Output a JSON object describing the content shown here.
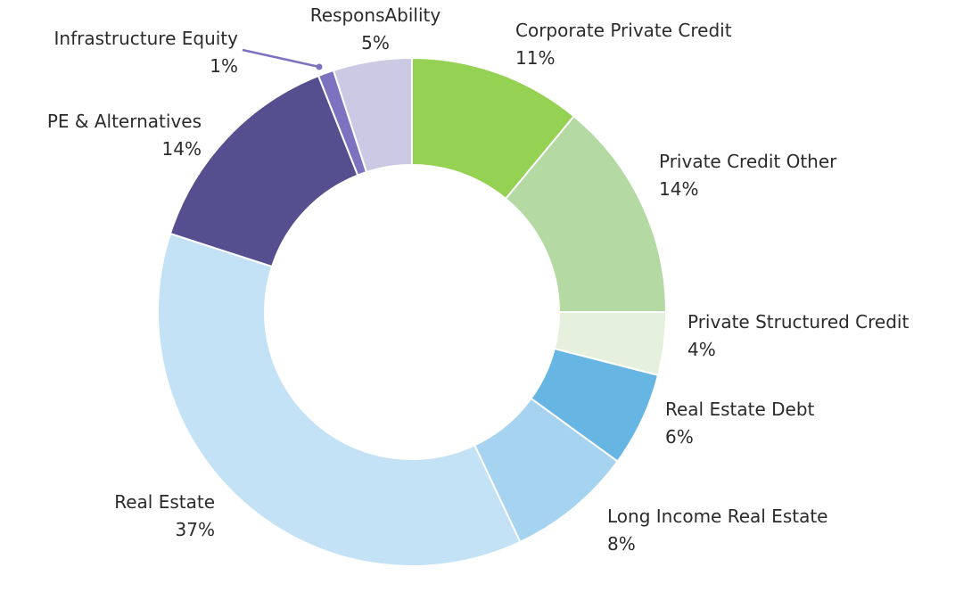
{
  "chart_data": {
    "type": "pie",
    "variant": "donut",
    "legend": "none",
    "slices": [
      {
        "label": "Corporate Private Credit",
        "value": 11,
        "value_label": "11%",
        "color": "#95d152"
      },
      {
        "label": "Private Credit Other",
        "value": 14,
        "value_label": "14%",
        "color": "#b4d9a2"
      },
      {
        "label": "Private Structured Credit",
        "value": 4,
        "value_label": "4%",
        "color": "#e5f0dd"
      },
      {
        "label": "Real Estate Debt",
        "value": 6,
        "value_label": "6%",
        "color": "#67b5e3"
      },
      {
        "label": "Long Income Real Estate",
        "value": 8,
        "value_label": "8%",
        "color": "#a6d3ef"
      },
      {
        "label": "Real Estate",
        "value": 37,
        "value_label": "37%",
        "color": "#c3e2f5"
      },
      {
        "label": "PE & Alternatives",
        "value": 14,
        "value_label": "14%",
        "color": "#554e8f"
      },
      {
        "label": "Infrastructure Equity",
        "value": 1,
        "value_label": "1%",
        "color": "#7c72c0"
      },
      {
        "label": "ResponsAbility",
        "value": 5,
        "value_label": "5%",
        "color": "#ccc9e5"
      }
    ]
  }
}
